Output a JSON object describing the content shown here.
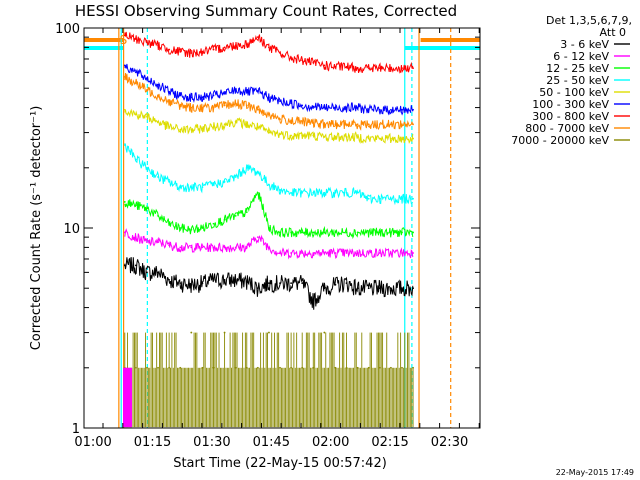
{
  "chart_data": {
    "type": "line",
    "title": "HESSI Observing Summary Count Rates, Corrected",
    "xlabel": "Start Time (22-May-15 00:57:42)",
    "ylabel": "Corrected Count Rate (s⁻¹ detector⁻¹)",
    "y_scale": "log",
    "ylim": [
      1,
      100
    ],
    "xlim_minutes": [
      0,
      100
    ],
    "x_ticks": [
      "01:00",
      "01:15",
      "01:30",
      "01:45",
      "02:00",
      "02:15",
      "02:30"
    ],
    "x_tick_minutes": [
      2.3,
      17.3,
      32.3,
      47.3,
      62.3,
      77.3,
      92.3
    ],
    "y_tick_labels": [
      "1",
      "10",
      "100"
    ],
    "y_tick_values": [
      1,
      10,
      100
    ],
    "legend_placement": "right",
    "legend_header": [
      "Det 1,3,5,6,7,9,",
      "Att 0"
    ],
    "series": [
      {
        "name": "3 - 6 keV",
        "color": "#000000",
        "values": [
          6.5,
          6.5,
          6.0,
          6.0,
          5.5,
          5.3,
          5.2,
          5.3,
          5.5,
          5.5,
          5.5,
          5.4,
          5.0,
          5.3,
          5.3,
          5.3,
          5.3,
          4.3,
          5.0,
          5.2,
          5.3,
          5.0,
          5.0,
          5.0,
          5.0,
          5.0,
          5.0
        ]
      },
      {
        "name": "6 - 12 keV",
        "color": "#ff00ff",
        "values": [
          9.5,
          9.0,
          8.5,
          8.5,
          8.2,
          8.0,
          8.0,
          8.0,
          8.0,
          8.0,
          8.0,
          8.0,
          9.0,
          8.0,
          7.5,
          7.5,
          7.5,
          7.5,
          7.5,
          7.5,
          7.5,
          7.5,
          7.5,
          7.5,
          7.5,
          7.5,
          7.5
        ]
      },
      {
        "name": "12 - 25 keV",
        "color": "#00ff00",
        "values": [
          13.5,
          13.0,
          12.5,
          11.5,
          10.5,
          10.0,
          9.8,
          10.0,
          10.5,
          11.0,
          11.5,
          12.0,
          15.0,
          10.0,
          9.5,
          9.5,
          9.5,
          9.5,
          9.5,
          9.5,
          9.5,
          9.5,
          9.5,
          9.5,
          9.5,
          9.5,
          9.5
        ]
      },
      {
        "name": "25 - 50 keV",
        "color": "#00ffff",
        "values": [
          26.0,
          22.0,
          20.0,
          18.0,
          17.0,
          16.0,
          16.0,
          16.0,
          16.5,
          17.0,
          18.0,
          20.0,
          19.0,
          16.5,
          15.5,
          15.0,
          15.0,
          15.0,
          15.0,
          15.0,
          15.0,
          15.0,
          14.0,
          14.0,
          14.0,
          14.0,
          14.0
        ]
      },
      {
        "name": "50 - 100 keV",
        "color": "#dddd00",
        "values": [
          39.0,
          37.0,
          36.0,
          34.0,
          32.0,
          31.0,
          31.0,
          31.5,
          32.0,
          33.0,
          34.0,
          33.0,
          32.0,
          30.0,
          29.5,
          29.0,
          29.0,
          29.0,
          28.5,
          28.5,
          28.5,
          28.5,
          28.0,
          28.0,
          28.0,
          28.0,
          28.0
        ]
      },
      {
        "name": "100 - 300 keV",
        "color": "#0000ff",
        "values": [
          65.0,
          60.0,
          56.0,
          52.0,
          48.0,
          46.0,
          45.0,
          45.0,
          46.0,
          47.0,
          49.0,
          48.0,
          48.0,
          45.0,
          43.0,
          42.0,
          41.0,
          40.5,
          40.0,
          40.0,
          40.0,
          40.0,
          39.0,
          39.0,
          39.0,
          39.0,
          39.0
        ]
      },
      {
        "name": "300 - 800 keV",
        "color": "#ff0000",
        "values": [
          92.0,
          88.0,
          85.0,
          82.0,
          78.0,
          76.0,
          75.0,
          76.0,
          78.0,
          80.0,
          82.0,
          83.0,
          90.0,
          80.0,
          75.0,
          71.0,
          69.0,
          67.0,
          65.0,
          64.0,
          64.0,
          63.0,
          63.0,
          63.0,
          63.0,
          63.0,
          63.0
        ]
      },
      {
        "name": "800 - 7000 keV",
        "color": "#ff8800",
        "values": [
          57.0,
          53.0,
          49.0,
          46.0,
          43.0,
          41.0,
          40.0,
          40.0,
          40.0,
          41.0,
          42.0,
          41.0,
          39.0,
          37.0,
          35.0,
          34.5,
          34.0,
          33.5,
          33.0,
          33.0,
          33.0,
          33.0,
          33.0,
          33.0,
          33.0,
          33.0,
          33.0
        ]
      },
      {
        "name": "7000 - 20000 keV",
        "color": "#888800",
        "values": [
          2.0,
          2.0,
          2.0,
          2.0,
          2.0,
          2.0,
          3.0,
          2.0,
          2.0,
          3.0,
          2.0,
          2.0,
          2.0,
          3.0,
          2.0,
          2.0,
          2.0,
          2.0,
          3.0,
          2.0,
          2.0,
          2.0,
          2.0,
          2.0,
          2.0,
          2.0,
          2.0
        ]
      }
    ],
    "series_x_minutes": [
      10.3,
      13.1,
      15.9,
      18.7,
      21.5,
      24.3,
      27.1,
      29.9,
      32.7,
      35.5,
      38.3,
      41.1,
      43.9,
      46.7,
      49.5,
      52.3,
      55.1,
      57.9,
      60.7,
      63.5,
      66.3,
      69.1,
      71.9,
      74.7,
      77.5,
      80.3,
      83.1
    ],
    "annotations": {
      "saa_marker": "S",
      "timestamp": "22-May-2015 17:49"
    }
  }
}
